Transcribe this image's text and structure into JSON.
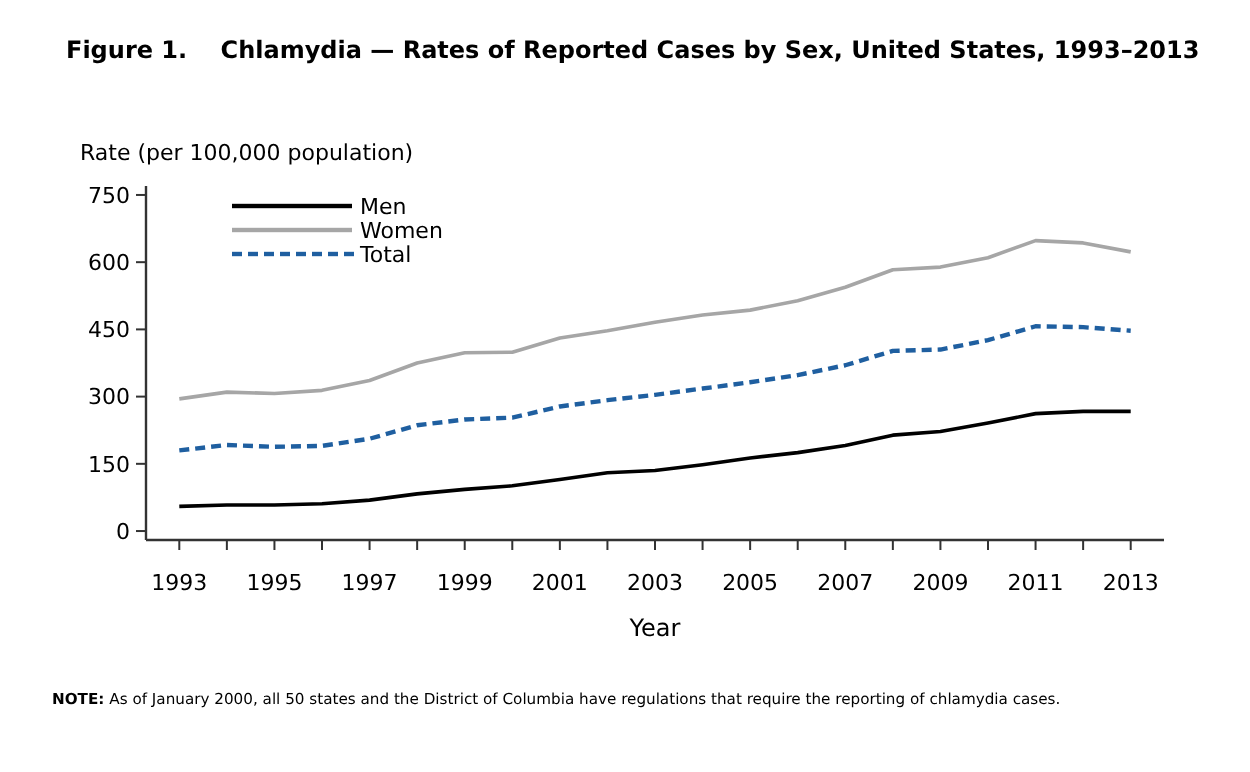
{
  "chart_data": {
    "type": "line",
    "title": "Figure 1.    Chlamydia — Rates of Reported Cases by Sex, United States, 1993–2013",
    "ylabel": "Rate (per 100,000 population)",
    "xlabel": "Year",
    "x": [
      1993,
      1994,
      1995,
      1996,
      1997,
      1998,
      1999,
      2000,
      2001,
      2002,
      2003,
      2004,
      2005,
      2006,
      2007,
      2008,
      2009,
      2010,
      2011,
      2012,
      2013
    ],
    "series": [
      {
        "name": "Men",
        "color": "#000000",
        "line_style": "solid",
        "values": [
          55,
          58,
          58,
          61,
          69,
          83,
          93,
          101,
          115,
          130,
          135,
          148,
          163,
          175,
          191,
          214,
          222,
          241,
          262,
          267,
          267
        ]
      },
      {
        "name": "Women",
        "color": "#a6a6a6",
        "line_style": "solid",
        "values": [
          295,
          310,
          307,
          314,
          336,
          375,
          398,
          399,
          431,
          447,
          466,
          482,
          493,
          514,
          544,
          583,
          589,
          610,
          648,
          643,
          623
        ]
      },
      {
        "name": "Total",
        "color": "#1f5fa0",
        "line_style": "dashed",
        "values": [
          180,
          192,
          188,
          190,
          206,
          236,
          249,
          253,
          278,
          292,
          304,
          318,
          332,
          348,
          370,
          402,
          405,
          426,
          457,
          455,
          447
        ]
      }
    ],
    "xlim": [
      1992.3,
      2013.7
    ],
    "xticks": [
      1993,
      {
        "value": 1994,
        "label": null
      },
      1995,
      {
        "value": 1996,
        "label": null
      },
      1997,
      {
        "value": 1998,
        "label": null
      },
      1999,
      {
        "value": 2000,
        "label": null
      },
      2001,
      {
        "value": 2002,
        "label": null
      },
      2003,
      {
        "value": 2004,
        "label": null
      },
      2005,
      {
        "value": 2006,
        "label": null
      },
      2007,
      {
        "value": 2008,
        "label": null
      },
      2009,
      {
        "value": 2010,
        "label": null
      },
      2011,
      {
        "value": 2012,
        "label": null
      },
      2013
    ],
    "ylim": [
      -20,
      770
    ],
    "yticks": [
      0,
      150,
      300,
      450,
      600,
      750
    ],
    "grid": false,
    "legend": "top left",
    "marker": "none",
    "annotations": [
      "NOTE: As of January 2000, all 50 states and the District of Columbia have regulations that require the reporting of chlamydia cases."
    ]
  }
}
